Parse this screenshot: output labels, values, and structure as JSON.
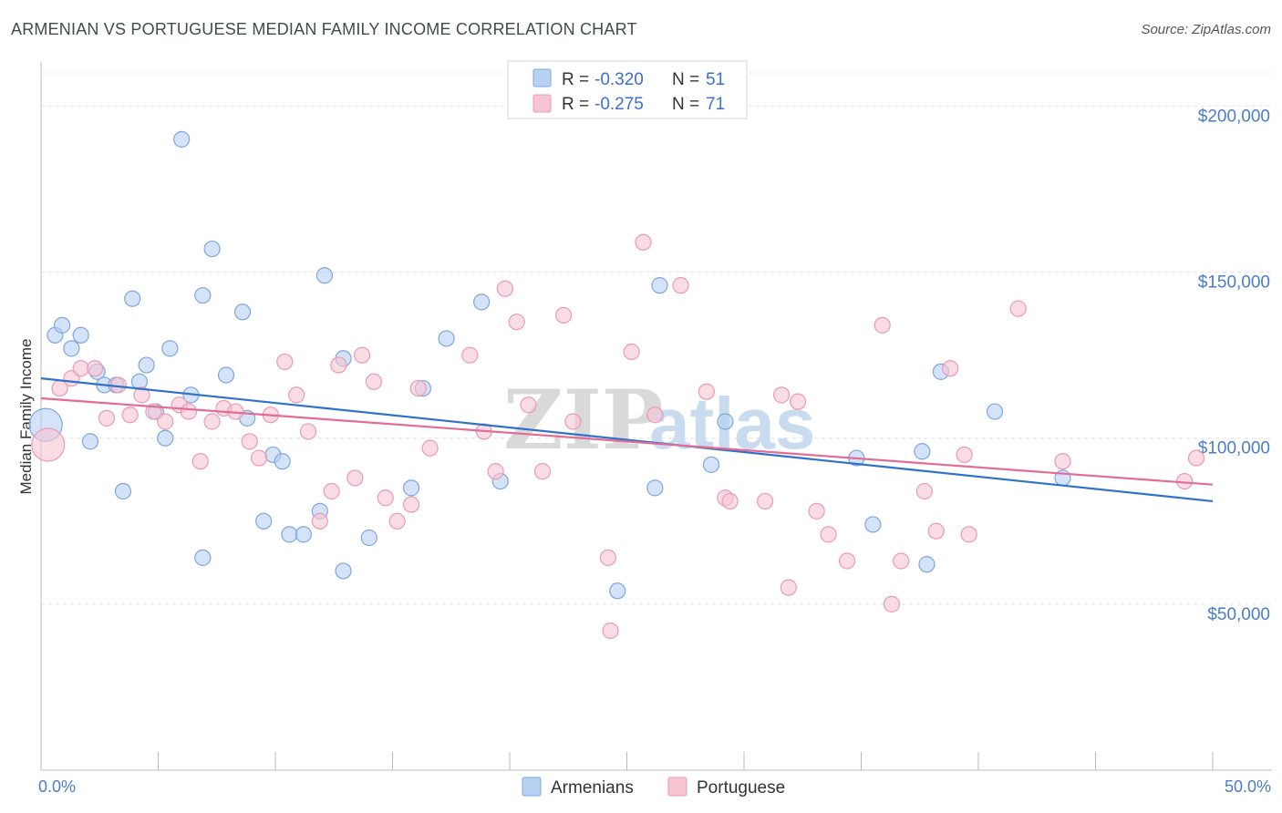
{
  "title": "ARMENIAN VS PORTUGUESE MEDIAN FAMILY INCOME CORRELATION CHART",
  "source": "Source: ZipAtlas.com",
  "watermark": {
    "zip": "ZIP",
    "atlas": "atlas"
  },
  "colors": {
    "armenians_fill": "#b8d1f2",
    "armenians_stroke": "#7ea7dd",
    "armenians_line": "#2f72c9",
    "portuguese_fill": "#f7c4d4",
    "portuguese_stroke": "#e99ab4",
    "portuguese_line": "#e46b95"
  },
  "legend": {
    "rows": [
      {
        "r_label": "R =",
        "r_value": "-0.320",
        "n_label": "N =",
        "n_value": "51"
      },
      {
        "r_label": "R =",
        "r_value": "-0.275",
        "n_label": "N =",
        "n_value": "71"
      }
    ]
  },
  "chart_data": {
    "type": "scatter",
    "title": "ARMENIAN VS PORTUGUESE MEDIAN FAMILY INCOME CORRELATION CHART",
    "xlabel": "",
    "ylabel": "Median Family Income",
    "xlim": [
      0,
      50
    ],
    "ylim": [
      0,
      210000
    ],
    "x_tick_labels": [
      "0.0%",
      "50.0%"
    ],
    "y_ticks": [
      50000,
      100000,
      150000,
      200000
    ],
    "y_tick_labels": [
      "$50,000",
      "$100,000",
      "$150,000",
      "$200,000"
    ],
    "grid": true,
    "legend_position": "top-center",
    "series": [
      {
        "name": "Armenians",
        "trend": {
          "x": [
            0,
            50
          ],
          "y": [
            118000,
            81000
          ]
        },
        "points": [
          {
            "x": 0.2,
            "y": 104000,
            "big": true
          },
          {
            "x": 0.6,
            "y": 131000
          },
          {
            "x": 0.9,
            "y": 134000
          },
          {
            "x": 1.3,
            "y": 127000
          },
          {
            "x": 1.7,
            "y": 131000
          },
          {
            "x": 2.1,
            "y": 99000
          },
          {
            "x": 2.4,
            "y": 120000
          },
          {
            "x": 2.7,
            "y": 116000
          },
          {
            "x": 3.2,
            "y": 116000
          },
          {
            "x": 3.5,
            "y": 84000
          },
          {
            "x": 3.9,
            "y": 142000
          },
          {
            "x": 4.2,
            "y": 117000
          },
          {
            "x": 4.5,
            "y": 122000
          },
          {
            "x": 4.9,
            "y": 108000
          },
          {
            "x": 5.3,
            "y": 100000
          },
          {
            "x": 5.5,
            "y": 127000
          },
          {
            "x": 6.0,
            "y": 190000
          },
          {
            "x": 6.4,
            "y": 113000
          },
          {
            "x": 6.9,
            "y": 64000
          },
          {
            "x": 6.9,
            "y": 143000
          },
          {
            "x": 7.3,
            "y": 157000
          },
          {
            "x": 7.9,
            "y": 119000
          },
          {
            "x": 8.6,
            "y": 138000
          },
          {
            "x": 8.8,
            "y": 106000
          },
          {
            "x": 9.5,
            "y": 75000
          },
          {
            "x": 9.9,
            "y": 95000
          },
          {
            "x": 10.3,
            "y": 93000
          },
          {
            "x": 10.6,
            "y": 71000
          },
          {
            "x": 11.2,
            "y": 71000
          },
          {
            "x": 11.9,
            "y": 78000
          },
          {
            "x": 12.1,
            "y": 149000
          },
          {
            "x": 12.9,
            "y": 124000
          },
          {
            "x": 12.9,
            "y": 60000
          },
          {
            "x": 14.0,
            "y": 70000
          },
          {
            "x": 15.8,
            "y": 85000
          },
          {
            "x": 16.3,
            "y": 115000
          },
          {
            "x": 17.3,
            "y": 130000
          },
          {
            "x": 18.8,
            "y": 141000
          },
          {
            "x": 19.6,
            "y": 87000
          },
          {
            "x": 24.6,
            "y": 54000
          },
          {
            "x": 26.2,
            "y": 85000
          },
          {
            "x": 26.4,
            "y": 146000
          },
          {
            "x": 28.6,
            "y": 92000
          },
          {
            "x": 29.2,
            "y": 105000
          },
          {
            "x": 34.8,
            "y": 94000
          },
          {
            "x": 35.5,
            "y": 74000
          },
          {
            "x": 37.6,
            "y": 96000
          },
          {
            "x": 37.8,
            "y": 62000
          },
          {
            "x": 38.4,
            "y": 120000
          },
          {
            "x": 40.7,
            "y": 108000
          },
          {
            "x": 43.6,
            "y": 88000
          }
        ]
      },
      {
        "name": "Portuguese",
        "trend": {
          "x": [
            0,
            50
          ],
          "y": [
            112000,
            86000
          ]
        },
        "points": [
          {
            "x": 0.3,
            "y": 98000,
            "big": true
          },
          {
            "x": 0.8,
            "y": 115000
          },
          {
            "x": 1.3,
            "y": 118000
          },
          {
            "x": 1.7,
            "y": 121000
          },
          {
            "x": 2.3,
            "y": 121000
          },
          {
            "x": 2.8,
            "y": 106000
          },
          {
            "x": 3.3,
            "y": 116000
          },
          {
            "x": 3.8,
            "y": 107000
          },
          {
            "x": 4.3,
            "y": 113000
          },
          {
            "x": 4.8,
            "y": 108000
          },
          {
            "x": 5.3,
            "y": 105000
          },
          {
            "x": 5.9,
            "y": 110000
          },
          {
            "x": 6.3,
            "y": 108000
          },
          {
            "x": 6.8,
            "y": 93000
          },
          {
            "x": 7.3,
            "y": 105000
          },
          {
            "x": 7.8,
            "y": 109000
          },
          {
            "x": 8.3,
            "y": 108000
          },
          {
            "x": 8.9,
            "y": 99000
          },
          {
            "x": 9.3,
            "y": 94000
          },
          {
            "x": 9.8,
            "y": 107000
          },
          {
            "x": 10.4,
            "y": 123000
          },
          {
            "x": 10.9,
            "y": 113000
          },
          {
            "x": 11.4,
            "y": 102000
          },
          {
            "x": 11.9,
            "y": 75000
          },
          {
            "x": 12.4,
            "y": 84000
          },
          {
            "x": 12.7,
            "y": 122000
          },
          {
            "x": 13.4,
            "y": 88000
          },
          {
            "x": 13.7,
            "y": 125000
          },
          {
            "x": 14.2,
            "y": 117000
          },
          {
            "x": 14.7,
            "y": 82000
          },
          {
            "x": 15.2,
            "y": 75000
          },
          {
            "x": 15.8,
            "y": 80000
          },
          {
            "x": 16.1,
            "y": 115000
          },
          {
            "x": 16.6,
            "y": 97000
          },
          {
            "x": 18.3,
            "y": 125000
          },
          {
            "x": 18.9,
            "y": 102000
          },
          {
            "x": 19.4,
            "y": 90000
          },
          {
            "x": 19.8,
            "y": 145000
          },
          {
            "x": 20.3,
            "y": 135000
          },
          {
            "x": 20.8,
            "y": 110000
          },
          {
            "x": 21.4,
            "y": 90000
          },
          {
            "x": 22.3,
            "y": 137000
          },
          {
            "x": 22.7,
            "y": 105000
          },
          {
            "x": 24.2,
            "y": 64000
          },
          {
            "x": 24.3,
            "y": 42000
          },
          {
            "x": 25.2,
            "y": 126000
          },
          {
            "x": 25.7,
            "y": 159000
          },
          {
            "x": 26.2,
            "y": 107000
          },
          {
            "x": 27.3,
            "y": 146000
          },
          {
            "x": 28.4,
            "y": 114000
          },
          {
            "x": 29.2,
            "y": 82000
          },
          {
            "x": 29.4,
            "y": 81000
          },
          {
            "x": 30.9,
            "y": 81000
          },
          {
            "x": 31.6,
            "y": 113000
          },
          {
            "x": 31.9,
            "y": 55000
          },
          {
            "x": 32.3,
            "y": 111000
          },
          {
            "x": 33.1,
            "y": 78000
          },
          {
            "x": 33.6,
            "y": 71000
          },
          {
            "x": 34.4,
            "y": 63000
          },
          {
            "x": 35.9,
            "y": 134000
          },
          {
            "x": 36.3,
            "y": 50000
          },
          {
            "x": 36.7,
            "y": 63000
          },
          {
            "x": 37.7,
            "y": 84000
          },
          {
            "x": 38.2,
            "y": 72000
          },
          {
            "x": 38.8,
            "y": 121000
          },
          {
            "x": 39.4,
            "y": 95000
          },
          {
            "x": 39.6,
            "y": 71000
          },
          {
            "x": 41.7,
            "y": 139000
          },
          {
            "x": 43.6,
            "y": 93000
          },
          {
            "x": 48.8,
            "y": 87000
          },
          {
            "x": 49.3,
            "y": 94000
          }
        ]
      }
    ]
  }
}
